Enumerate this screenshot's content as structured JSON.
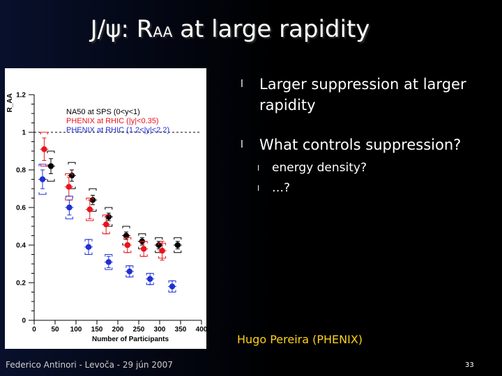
{
  "slide": {
    "title_main": "J/ψ: R",
    "title_sub": "AA",
    "title_rest": " at large rapidity",
    "bullets": [
      {
        "text": "Larger suppression at larger rapidity"
      },
      {
        "text": "What controls suppression?"
      }
    ],
    "sub_bullets": [
      {
        "text": "energy density?"
      },
      {
        "text": "…?"
      }
    ],
    "credit": "Hugo Pereira (PHENIX)",
    "footer": "Federico Antinori - Levoča - 29 jún 2007",
    "page_number": "33",
    "bullet_glyph": "l",
    "colors": {
      "title": "#ffffff",
      "credit": "#ffd21a",
      "footer": "#cfcfcf"
    }
  },
  "chart_data": {
    "type": "scatter",
    "title": "",
    "xlabel": "Number of Participants",
    "ylabel": "R_AA",
    "xlim": [
      0,
      400
    ],
    "ylim": [
      0,
      1.2
    ],
    "xticks": [
      "0",
      "50",
      "100",
      "150",
      "200",
      "250",
      "300",
      "350",
      "400"
    ],
    "yticks": [
      "0",
      "0.2",
      "0.4",
      "0.6",
      "0.8",
      "1",
      "1.2"
    ],
    "reference_line": 1,
    "legend_position": "top",
    "series": [
      {
        "name": "NA50 at SPS (0<y<1)",
        "color": "#000000",
        "points": [
          {
            "x": 40,
            "y": 0.82,
            "err": 0.04,
            "sys": 0.08
          },
          {
            "x": 90,
            "y": 0.77,
            "err": 0.03,
            "sys": 0.07
          },
          {
            "x": 140,
            "y": 0.64,
            "err": 0.025,
            "sys": 0.06
          },
          {
            "x": 178,
            "y": 0.55,
            "err": 0.02,
            "sys": 0.05
          },
          {
            "x": 220,
            "y": 0.45,
            "err": 0.02,
            "sys": 0.05
          },
          {
            "x": 258,
            "y": 0.42,
            "err": 0.02,
            "sys": 0.04
          },
          {
            "x": 298,
            "y": 0.4,
            "err": 0.02,
            "sys": 0.04
          },
          {
            "x": 343,
            "y": 0.4,
            "err": 0.02,
            "sys": 0.04
          }
        ]
      },
      {
        "name": "PHENIX at RHIC (|y|<0.35)",
        "color": "#e8141c",
        "points": [
          {
            "x": 24,
            "y": 0.91,
            "err": 0.06,
            "sys": 0.09
          },
          {
            "x": 83,
            "y": 0.71,
            "err": 0.05,
            "sys": 0.07
          },
          {
            "x": 133,
            "y": 0.59,
            "err": 0.05,
            "sys": 0.06
          },
          {
            "x": 172,
            "y": 0.51,
            "err": 0.05,
            "sys": 0.05
          },
          {
            "x": 223,
            "y": 0.4,
            "err": 0.04,
            "sys": 0.04
          },
          {
            "x": 262,
            "y": 0.38,
            "err": 0.04,
            "sys": 0.04
          },
          {
            "x": 306,
            "y": 0.37,
            "err": 0.05,
            "sys": 0.04
          }
        ]
      },
      {
        "name": "PHENIX at RHIC (1.2<|y|<2.2)",
        "color": "#1f2fd6",
        "points": [
          {
            "x": 20,
            "y": 0.75,
            "err": 0.05,
            "sys": 0.08
          },
          {
            "x": 84,
            "y": 0.6,
            "err": 0.04,
            "sys": 0.06
          },
          {
            "x": 130,
            "y": 0.39,
            "err": 0.04,
            "sys": 0.04
          },
          {
            "x": 178,
            "y": 0.31,
            "err": 0.03,
            "sys": 0.04
          },
          {
            "x": 228,
            "y": 0.26,
            "err": 0.03,
            "sys": 0.03
          },
          {
            "x": 277,
            "y": 0.22,
            "err": 0.03,
            "sys": 0.03
          },
          {
            "x": 330,
            "y": 0.18,
            "err": 0.03,
            "sys": 0.03
          }
        ]
      }
    ]
  }
}
